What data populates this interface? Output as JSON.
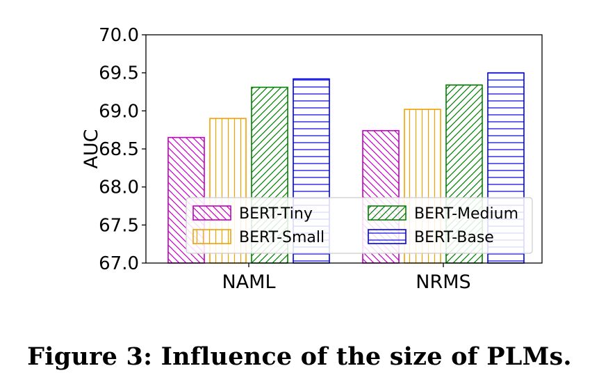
{
  "chart_data": {
    "type": "bar",
    "title": "",
    "xlabel": "",
    "ylabel": "AUC",
    "ylim": [
      67.0,
      70.0
    ],
    "yticks": [
      "67.0",
      "67.5",
      "68.0",
      "68.5",
      "69.0",
      "69.5",
      "70.0"
    ],
    "categories": [
      "NAML",
      "NRMS"
    ],
    "series": [
      {
        "name": "BERT-Tiny",
        "values": [
          68.65,
          68.74
        ],
        "color": "#c000c0",
        "hatch": "backslash"
      },
      {
        "name": "BERT-Small",
        "values": [
          68.9,
          69.02
        ],
        "color": "#f0a000",
        "hatch": "vertical"
      },
      {
        "name": "BERT-Medium",
        "values": [
          69.31,
          69.34
        ],
        "color": "#008000",
        "hatch": "slash"
      },
      {
        "name": "BERT-Base",
        "values": [
          69.42,
          69.5
        ],
        "color": "#0000e0",
        "hatch": "horizontal"
      }
    ],
    "legend_position": "lower-center",
    "legend_columns": 2
  },
  "caption": "Figure 3: Influence of the size of PLMs."
}
